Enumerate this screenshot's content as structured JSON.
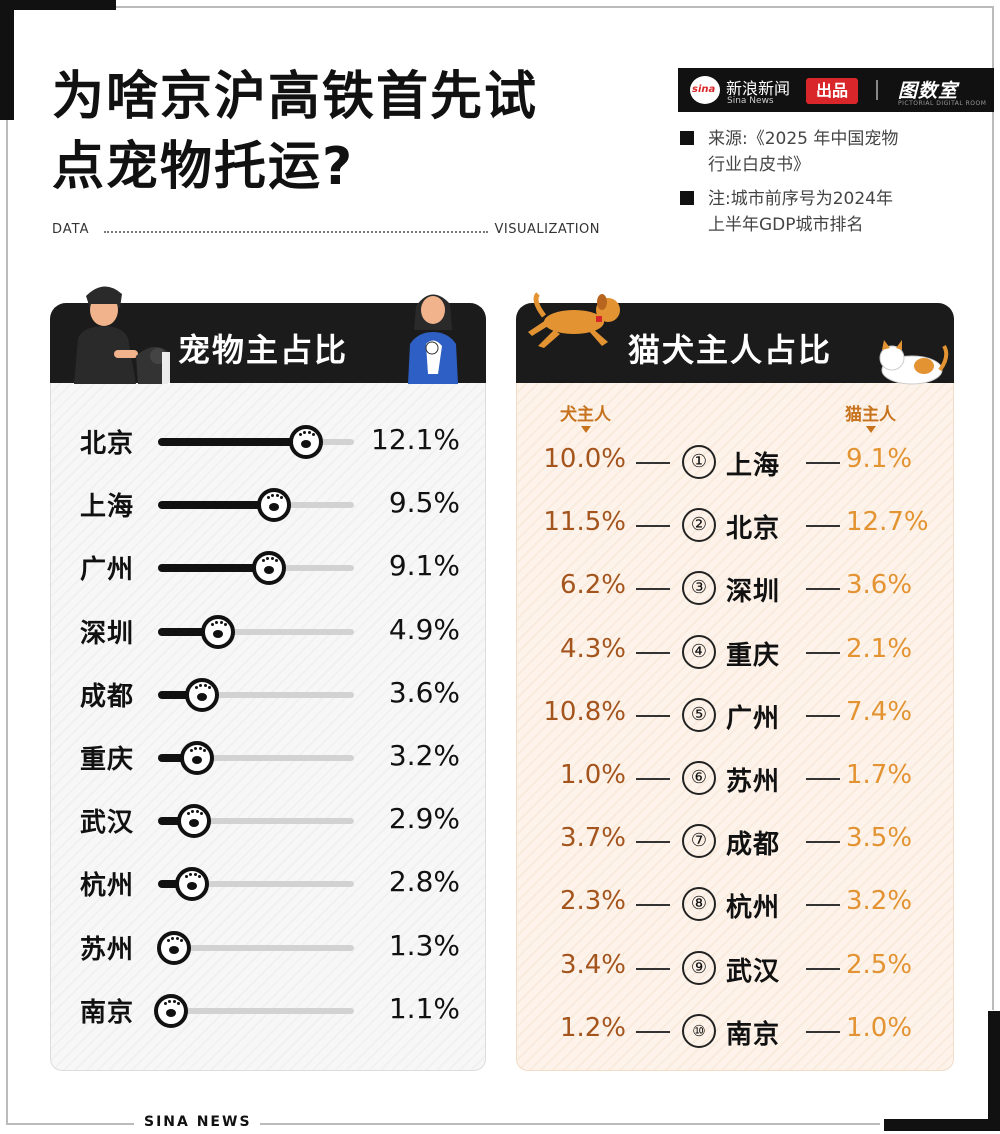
{
  "title": "为啥京沪高铁首先试\n点宠物托运?",
  "axis_words": {
    "left": "DATA",
    "right": "VISUALIZATION"
  },
  "brand": {
    "name": "新浪新闻",
    "sub": "Sina News",
    "badge": "出品",
    "partner": "图数室",
    "partner_sub": "PICTORIAL DIGITAL ROOM"
  },
  "notes": [
    {
      "text": "来源:《2025 年中国宠物\n行业白皮书》"
    },
    {
      "text": "注:城市前序号为2024年\n上半年GDP城市排名"
    }
  ],
  "footer": "SINA  NEWS",
  "colors": {
    "dog": "#a4551e",
    "cat": "#e39332",
    "header": "#1b1b1b"
  },
  "chart_data": [
    {
      "type": "bar",
      "title": "宠物主占比",
      "categories": [
        "北京",
        "上海",
        "广州",
        "深圳",
        "成都",
        "重庆",
        "武汉",
        "杭州",
        "苏州",
        "南京"
      ],
      "values": [
        12.1,
        9.5,
        9.1,
        4.9,
        3.6,
        3.2,
        2.9,
        2.8,
        1.3,
        1.1
      ],
      "labels": [
        "12.1%",
        "9.5%",
        "9.1%",
        "4.9%",
        "3.6%",
        "3.2%",
        "2.9%",
        "2.8%",
        "1.3%",
        "1.1%"
      ],
      "xlim": [
        0,
        16
      ]
    },
    {
      "type": "table",
      "title": "猫犬主人占比",
      "columns": [
        "犬主人",
        "猫主人"
      ],
      "rank_symbols": [
        "①",
        "②",
        "③",
        "④",
        "⑤",
        "⑥",
        "⑦",
        "⑧",
        "⑨",
        "⑩"
      ],
      "rows": [
        {
          "rank": 1,
          "city": "上海",
          "dog": "10.0%",
          "cat": "9.1%"
        },
        {
          "rank": 2,
          "city": "北京",
          "dog": "11.5%",
          "cat": "12.7%"
        },
        {
          "rank": 3,
          "city": "深圳",
          "dog": "6.2%",
          "cat": "3.6%"
        },
        {
          "rank": 4,
          "city": "重庆",
          "dog": "4.3%",
          "cat": "2.1%"
        },
        {
          "rank": 5,
          "city": "广州",
          "dog": "10.8%",
          "cat": "7.4%"
        },
        {
          "rank": 6,
          "city": "苏州",
          "dog": "1.0%",
          "cat": "1.7%"
        },
        {
          "rank": 7,
          "city": "成都",
          "dog": "3.7%",
          "cat": "3.5%"
        },
        {
          "rank": 8,
          "city": "杭州",
          "dog": "2.3%",
          "cat": "3.2%"
        },
        {
          "rank": 9,
          "city": "武汉",
          "dog": "3.4%",
          "cat": "2.5%"
        },
        {
          "rank": 10,
          "city": "南京",
          "dog": "1.2%",
          "cat": "1.0%"
        }
      ]
    }
  ]
}
